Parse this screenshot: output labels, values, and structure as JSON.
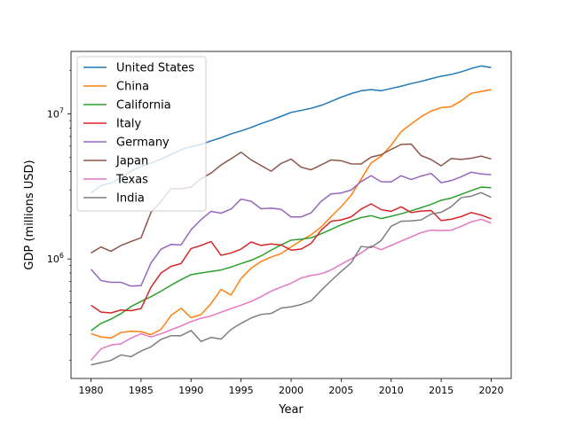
{
  "chart_data": {
    "type": "line",
    "xlabel": "Year",
    "ylabel": "GDP (millions USD)",
    "yscale": "log",
    "xlim": [
      1978,
      2022
    ],
    "ylim": [
      150000,
      27000000
    ],
    "x_ticks": [
      1980,
      1985,
      1990,
      1995,
      2000,
      2005,
      2010,
      2015,
      2020
    ],
    "x_tick_labels": [
      "1980",
      "1985",
      "1990",
      "1995",
      "2000",
      "2005",
      "2010",
      "2015",
      "2020"
    ],
    "y_major_ticks": [
      {
        "value": 1000000,
        "base": "10",
        "exp": "6"
      },
      {
        "value": 10000000,
        "base": "10",
        "exp": "7"
      }
    ],
    "y_minor_ticks": [
      200000,
      300000,
      400000,
      500000,
      600000,
      700000,
      800000,
      900000,
      2000000,
      3000000,
      4000000,
      5000000,
      6000000,
      7000000,
      8000000,
      9000000,
      20000000
    ],
    "grid": false,
    "legend_position": "top-left",
    "x": [
      1980,
      1981,
      1982,
      1983,
      1984,
      1985,
      1986,
      1987,
      1988,
      1989,
      1990,
      1991,
      1992,
      1993,
      1994,
      1995,
      1996,
      1997,
      1998,
      1999,
      2000,
      2001,
      2002,
      2003,
      2004,
      2005,
      2006,
      2007,
      2008,
      2009,
      2010,
      2011,
      2012,
      2013,
      2014,
      2015,
      2016,
      2017,
      2018,
      2019,
      2020
    ],
    "series": [
      {
        "name": "United States",
        "color": "#1f77b4",
        "values": [
          2860000,
          3210000,
          3340000,
          3640000,
          4040000,
          4350000,
          4590000,
          4870000,
          5250000,
          5660000,
          5960000,
          6160000,
          6520000,
          6860000,
          7290000,
          7640000,
          8070000,
          8580000,
          9060000,
          9630000,
          10250000,
          10580000,
          10940000,
          11460000,
          12210000,
          13040000,
          13810000,
          14450000,
          14710000,
          14450000,
          14990000,
          15540000,
          16200000,
          16780000,
          17520000,
          18220000,
          18710000,
          19520000,
          20580000,
          21430000,
          20890000
        ]
      },
      {
        "name": "China",
        "color": "#ff7f0e",
        "values": [
          306000,
          290000,
          285000,
          311000,
          318000,
          315000,
          301000,
          327000,
          408000,
          458000,
          394000,
          414000,
          493000,
          617000,
          564000,
          734000,
          864000,
          962000,
          1030000,
          1090000,
          1210000,
          1340000,
          1470000,
          1660000,
          1960000,
          2290000,
          2750000,
          3550000,
          4590000,
          5100000,
          6090000,
          7550000,
          8530000,
          9570000,
          10480000,
          11060000,
          11230000,
          12310000,
          13890000,
          14280000,
          14720000
        ]
      },
      {
        "name": "California",
        "color": "#2ca02c",
        "values": [
          320000,
          360000,
          385000,
          420000,
          470000,
          510000,
          550000,
          600000,
          660000,
          720000,
          780000,
          800000,
          820000,
          840000,
          880000,
          930000,
          980000,
          1050000,
          1150000,
          1250000,
          1350000,
          1370000,
          1400000,
          1490000,
          1600000,
          1720000,
          1830000,
          1930000,
          1990000,
          1900000,
          1970000,
          2050000,
          2150000,
          2260000,
          2380000,
          2540000,
          2630000,
          2790000,
          2960000,
          3130000,
          3100000
        ]
      },
      {
        "name": "Italy",
        "color": "#d62728",
        "values": [
          480000,
          430000,
          425000,
          445000,
          440000,
          455000,
          640000,
          800000,
          890000,
          930000,
          1180000,
          1240000,
          1320000,
          1060000,
          1100000,
          1170000,
          1310000,
          1240000,
          1270000,
          1250000,
          1150000,
          1170000,
          1280000,
          1580000,
          1820000,
          1860000,
          1950000,
          2210000,
          2400000,
          2190000,
          2130000,
          2290000,
          2090000,
          2140000,
          2160000,
          1840000,
          1880000,
          1960000,
          2090000,
          2010000,
          1890000
        ]
      },
      {
        "name": "Germany",
        "color": "#9467bd",
        "values": [
          850000,
          710000,
          690000,
          690000,
          650000,
          655000,
          940000,
          1170000,
          1260000,
          1250000,
          1590000,
          1870000,
          2130000,
          2070000,
          2210000,
          2590000,
          2500000,
          2220000,
          2240000,
          2200000,
          1950000,
          1950000,
          2080000,
          2500000,
          2810000,
          2850000,
          2990000,
          3420000,
          3750000,
          3410000,
          3400000,
          3750000,
          3530000,
          3730000,
          3890000,
          3360000,
          3470000,
          3690000,
          3970000,
          3860000,
          3810000
        ]
      },
      {
        "name": "Japan",
        "color": "#8c564b",
        "values": [
          1100000,
          1210000,
          1130000,
          1240000,
          1320000,
          1400000,
          2100000,
          2490000,
          3060000,
          3050000,
          3130000,
          3580000,
          3910000,
          4450000,
          4910000,
          5450000,
          4830000,
          4410000,
          4030000,
          4560000,
          4890000,
          4300000,
          4120000,
          4450000,
          4820000,
          4760000,
          4530000,
          4520000,
          5040000,
          5230000,
          5700000,
          6160000,
          6200000,
          5160000,
          4850000,
          4390000,
          4930000,
          4860000,
          4950000,
          5120000,
          4890000
        ]
      },
      {
        "name": "Texas",
        "color": "#e377c2",
        "values": [
          200000,
          240000,
          255000,
          260000,
          285000,
          305000,
          290000,
          305000,
          325000,
          345000,
          370000,
          390000,
          405000,
          430000,
          455000,
          480000,
          510000,
          550000,
          600000,
          640000,
          680000,
          740000,
          770000,
          790000,
          840000,
          920000,
          1000000,
          1100000,
          1230000,
          1160000,
          1240000,
          1330000,
          1420000,
          1520000,
          1580000,
          1570000,
          1580000,
          1680000,
          1800000,
          1880000,
          1770000
        ]
      },
      {
        "name": "India",
        "color": "#7f7f7f",
        "values": [
          186000,
          193000,
          200000,
          218000,
          212000,
          232000,
          248000,
          279000,
          296000,
          296000,
          321000,
          270000,
          288000,
          280000,
          327000,
          360000,
          392000,
          415000,
          421000,
          458000,
          468000,
          485000,
          515000,
          607000,
          709000,
          820000,
          940000,
          1220000,
          1200000,
          1340000,
          1680000,
          1820000,
          1830000,
          1860000,
          2040000,
          2100000,
          2290000,
          2650000,
          2710000,
          2870000,
          2660000
        ]
      }
    ]
  }
}
